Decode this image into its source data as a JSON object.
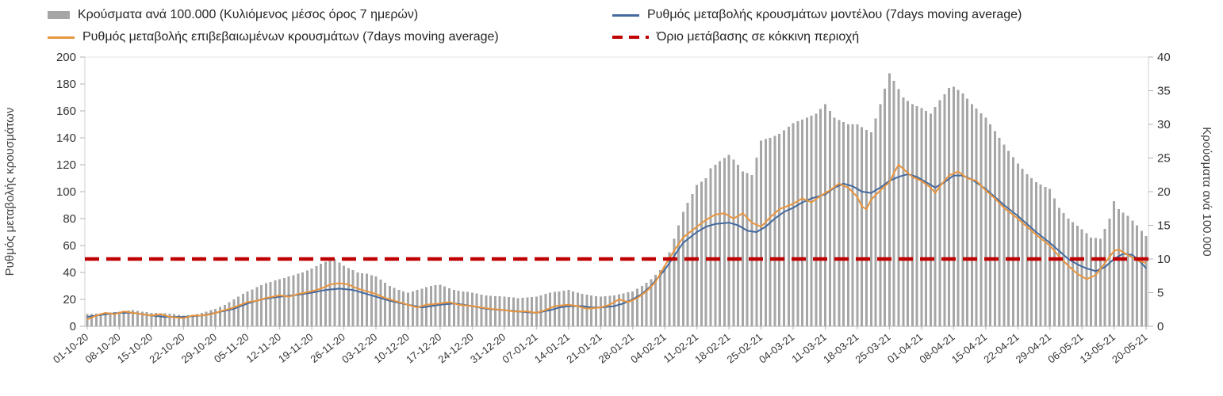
{
  "chart_data": {
    "type": "bar+line",
    "title": "",
    "days_total": 232,
    "x_tick_labels": [
      "01-10-20",
      "08-10-20",
      "15-10-20",
      "22-10-20",
      "29-10-20",
      "05-11-20",
      "12-11-20",
      "19-11-20",
      "26-11-20",
      "03-12-20",
      "10-12-20",
      "17-12-20",
      "24-12-20",
      "31-12-20",
      "07-01-21",
      "14-01-21",
      "21-01-21",
      "28-01-21",
      "04-02-21",
      "11-02-21",
      "18-02-21",
      "25-02-21",
      "04-03-21",
      "11-03-21",
      "18-03-21",
      "25-03-21",
      "01-04-21",
      "08-04-21",
      "15-04-21",
      "22-04-21",
      "29-04-21",
      "06-05-21",
      "13-05-21",
      "20-05-21"
    ],
    "left_axis": {
      "label": "Ρυθμός μεταβολής κρουσμάτων",
      "min": 0,
      "max": 200,
      "step": 20
    },
    "right_axis": {
      "label": "Κρούσματα ανά 100.000",
      "min": 0,
      "max": 40,
      "step": 5
    },
    "bars": {
      "name": "Κρούσματα ανά 100.000  (Κυλιόμενος μέσος όρος 7 ημερών)",
      "axis": "right",
      "color": "#a6a6a6",
      "points": [
        [
          0,
          1.8
        ],
        [
          2,
          1.9
        ],
        [
          4,
          2.0
        ],
        [
          7,
          2.2
        ],
        [
          10,
          2.4
        ],
        [
          12,
          2.2
        ],
        [
          14,
          2.0
        ],
        [
          18,
          1.9
        ],
        [
          21,
          1.6
        ],
        [
          23,
          1.7
        ],
        [
          25,
          2.0
        ],
        [
          28,
          2.6
        ],
        [
          30,
          3.2
        ],
        [
          32,
          4.0
        ],
        [
          35,
          5.2
        ],
        [
          37,
          5.8
        ],
        [
          39,
          6.4
        ],
        [
          42,
          7.0
        ],
        [
          45,
          7.6
        ],
        [
          47,
          8.0
        ],
        [
          49,
          8.6
        ],
        [
          52,
          9.6
        ],
        [
          54,
          10.0
        ],
        [
          56,
          9.0
        ],
        [
          59,
          8.0
        ],
        [
          61,
          7.8
        ],
        [
          63,
          7.4
        ],
        [
          66,
          6.0
        ],
        [
          68,
          5.4
        ],
        [
          70,
          5.0
        ],
        [
          73,
          5.6
        ],
        [
          75,
          6.0
        ],
        [
          77,
          6.2
        ],
        [
          80,
          5.4
        ],
        [
          82,
          5.2
        ],
        [
          84,
          5.0
        ],
        [
          87,
          4.6
        ],
        [
          89,
          4.5
        ],
        [
          91,
          4.4
        ],
        [
          94,
          4.2
        ],
        [
          96,
          4.3
        ],
        [
          98,
          4.4
        ],
        [
          101,
          5.0
        ],
        [
          103,
          5.2
        ],
        [
          105,
          5.4
        ],
        [
          108,
          4.8
        ],
        [
          110,
          4.6
        ],
        [
          112,
          4.4
        ],
        [
          115,
          4.6
        ],
        [
          117,
          4.9
        ],
        [
          119,
          5.2
        ],
        [
          121,
          6.0
        ],
        [
          123,
          7.0
        ],
        [
          126,
          9.0
        ],
        [
          128,
          13.0
        ],
        [
          130,
          17.0
        ],
        [
          133,
          21.0
        ],
        [
          135,
          22.0
        ],
        [
          136,
          23.5
        ],
        [
          138,
          24.5
        ],
        [
          140,
          25.5
        ],
        [
          142,
          24.0
        ],
        [
          143,
          23.0
        ],
        [
          145,
          22.5
        ],
        [
          147,
          27.6
        ],
        [
          149,
          28.0
        ],
        [
          151,
          28.6
        ],
        [
          154,
          30.2
        ],
        [
          157,
          31.0
        ],
        [
          159,
          31.6
        ],
        [
          161,
          33.0
        ],
        [
          163,
          31.0
        ],
        [
          166,
          30.0
        ],
        [
          168,
          30.0
        ],
        [
          171,
          28.8
        ],
        [
          173,
          33.0
        ],
        [
          175,
          37.6
        ],
        [
          176,
          36.5
        ],
        [
          178,
          34.0
        ],
        [
          180,
          33.0
        ],
        [
          182,
          32.4
        ],
        [
          184,
          31.6
        ],
        [
          186,
          33.6
        ],
        [
          188,
          35.4
        ],
        [
          189,
          35.6
        ],
        [
          191,
          34.6
        ],
        [
          193,
          33.0
        ],
        [
          196,
          31.0
        ],
        [
          198,
          29.0
        ],
        [
          200,
          27.0
        ],
        [
          203,
          24.2
        ],
        [
          205,
          22.6
        ],
        [
          207,
          21.4
        ],
        [
          210,
          20.4
        ],
        [
          212,
          17.6
        ],
        [
          214,
          16.0
        ],
        [
          217,
          14.4
        ],
        [
          219,
          13.2
        ],
        [
          221,
          13.0
        ],
        [
          223,
          16.0
        ],
        [
          224,
          18.6
        ],
        [
          225,
          17.4
        ],
        [
          227,
          16.4
        ],
        [
          229,
          15.0
        ],
        [
          231,
          13.4
        ]
      ]
    },
    "series": [
      {
        "name": "Ρυθμός μεταβολής κρουσμάτων μοντέλου (7days moving average)",
        "axis": "left",
        "color": "#44699e",
        "points": [
          [
            0,
            7
          ],
          [
            4,
            9
          ],
          [
            7,
            10
          ],
          [
            10,
            10
          ],
          [
            14,
            8
          ],
          [
            17,
            7
          ],
          [
            21,
            7
          ],
          [
            25,
            8
          ],
          [
            28,
            10
          ],
          [
            32,
            13
          ],
          [
            35,
            17
          ],
          [
            38,
            20
          ],
          [
            42,
            22
          ],
          [
            45,
            23
          ],
          [
            49,
            25
          ],
          [
            52,
            27
          ],
          [
            55,
            28
          ],
          [
            58,
            27
          ],
          [
            61,
            24
          ],
          [
            63,
            22
          ],
          [
            66,
            19
          ],
          [
            70,
            16
          ],
          [
            73,
            14
          ],
          [
            75,
            15
          ],
          [
            77,
            16
          ],
          [
            80,
            17
          ],
          [
            82,
            16
          ],
          [
            84,
            15
          ],
          [
            87,
            13
          ],
          [
            91,
            12
          ],
          [
            94,
            11
          ],
          [
            98,
            10
          ],
          [
            101,
            12
          ],
          [
            103,
            14
          ],
          [
            105,
            15
          ],
          [
            108,
            15
          ],
          [
            110,
            14
          ],
          [
            112,
            14
          ],
          [
            115,
            15
          ],
          [
            117,
            17
          ],
          [
            119,
            20
          ],
          [
            121,
            24
          ],
          [
            123,
            30
          ],
          [
            126,
            42
          ],
          [
            128,
            52
          ],
          [
            130,
            62
          ],
          [
            133,
            70
          ],
          [
            135,
            74
          ],
          [
            137,
            76
          ],
          [
            140,
            77
          ],
          [
            142,
            75
          ],
          [
            144,
            71
          ],
          [
            146,
            70
          ],
          [
            148,
            74
          ],
          [
            150,
            80
          ],
          [
            152,
            85
          ],
          [
            154,
            88
          ],
          [
            156,
            92
          ],
          [
            158,
            95
          ],
          [
            161,
            98
          ],
          [
            163,
            103
          ],
          [
            165,
            106
          ],
          [
            167,
            104
          ],
          [
            169,
            100
          ],
          [
            171,
            99
          ],
          [
            173,
            103
          ],
          [
            175,
            108
          ],
          [
            177,
            111
          ],
          [
            179,
            113
          ],
          [
            181,
            111
          ],
          [
            183,
            107
          ],
          [
            185,
            103
          ],
          [
            187,
            107
          ],
          [
            189,
            112
          ],
          [
            191,
            112
          ],
          [
            193,
            109
          ],
          [
            196,
            102
          ],
          [
            198,
            96
          ],
          [
            200,
            90
          ],
          [
            203,
            82
          ],
          [
            205,
            76
          ],
          [
            207,
            70
          ],
          [
            210,
            62
          ],
          [
            212,
            56
          ],
          [
            214,
            50
          ],
          [
            216,
            46
          ],
          [
            218,
            43
          ],
          [
            220,
            41
          ],
          [
            222,
            44
          ],
          [
            224,
            50
          ],
          [
            226,
            54
          ],
          [
            228,
            53
          ],
          [
            230,
            47
          ],
          [
            231,
            43
          ]
        ]
      },
      {
        "name": "Ρυθμός μεταβολής επιβεβαιωμένων κρουσμάτων (7days moving average)",
        "axis": "left",
        "color": "#e8953e",
        "points": [
          [
            0,
            5
          ],
          [
            2,
            8
          ],
          [
            4,
            10
          ],
          [
            6,
            9
          ],
          [
            8,
            11
          ],
          [
            10,
            10
          ],
          [
            12,
            9
          ],
          [
            14,
            8
          ],
          [
            16,
            9
          ],
          [
            18,
            7
          ],
          [
            21,
            6
          ],
          [
            23,
            8
          ],
          [
            25,
            8
          ],
          [
            27,
            9
          ],
          [
            28,
            10
          ],
          [
            30,
            12
          ],
          [
            32,
            14
          ],
          [
            35,
            18
          ],
          [
            37,
            19
          ],
          [
            39,
            21
          ],
          [
            42,
            23
          ],
          [
            44,
            22
          ],
          [
            46,
            24
          ],
          [
            49,
            26
          ],
          [
            51,
            28
          ],
          [
            53,
            31
          ],
          [
            55,
            32
          ],
          [
            57,
            31
          ],
          [
            59,
            28
          ],
          [
            61,
            26
          ],
          [
            63,
            24
          ],
          [
            65,
            21
          ],
          [
            68,
            18
          ],
          [
            70,
            16
          ],
          [
            72,
            14
          ],
          [
            74,
            16
          ],
          [
            77,
            17
          ],
          [
            79,
            18
          ],
          [
            81,
            16
          ],
          [
            84,
            15
          ],
          [
            86,
            14
          ],
          [
            88,
            13
          ],
          [
            91,
            12
          ],
          [
            93,
            11
          ],
          [
            96,
            11
          ],
          [
            98,
            10
          ],
          [
            100,
            12
          ],
          [
            102,
            15
          ],
          [
            105,
            16
          ],
          [
            107,
            15
          ],
          [
            109,
            13
          ],
          [
            112,
            14
          ],
          [
            114,
            16
          ],
          [
            116,
            20
          ],
          [
            118,
            18
          ],
          [
            120,
            21
          ],
          [
            122,
            26
          ],
          [
            124,
            33
          ],
          [
            126,
            45
          ],
          [
            128,
            56
          ],
          [
            130,
            66
          ],
          [
            133,
            74
          ],
          [
            135,
            79
          ],
          [
            137,
            83
          ],
          [
            139,
            84
          ],
          [
            141,
            80
          ],
          [
            143,
            84
          ],
          [
            145,
            77
          ],
          [
            147,
            74
          ],
          [
            149,
            81
          ],
          [
            151,
            87
          ],
          [
            154,
            91
          ],
          [
            156,
            95
          ],
          [
            158,
            92
          ],
          [
            160,
            97
          ],
          [
            162,
            101
          ],
          [
            164,
            106
          ],
          [
            166,
            103
          ],
          [
            168,
            96
          ],
          [
            169,
            89
          ],
          [
            170,
            87
          ],
          [
            171,
            94
          ],
          [
            173,
            101
          ],
          [
            175,
            107
          ],
          [
            176,
            114
          ],
          [
            177,
            120
          ],
          [
            178,
            117
          ],
          [
            180,
            111
          ],
          [
            182,
            108
          ],
          [
            184,
            103
          ],
          [
            185,
            99
          ],
          [
            186,
            104
          ],
          [
            188,
            112
          ],
          [
            190,
            115
          ],
          [
            192,
            110
          ],
          [
            194,
            108
          ],
          [
            196,
            101
          ],
          [
            198,
            95
          ],
          [
            200,
            88
          ],
          [
            203,
            80
          ],
          [
            205,
            74
          ],
          [
            207,
            68
          ],
          [
            210,
            60
          ],
          [
            212,
            52
          ],
          [
            214,
            45
          ],
          [
            216,
            39
          ],
          [
            218,
            35
          ],
          [
            220,
            38
          ],
          [
            222,
            47
          ],
          [
            224,
            56
          ],
          [
            225,
            57
          ],
          [
            227,
            53
          ],
          [
            229,
            49
          ],
          [
            231,
            47
          ]
        ]
      }
    ],
    "threshold": {
      "name": "Όριο μετάβασης σε κόκκινη περιοχή",
      "axis": "left",
      "value": 50,
      "color": "#c00000",
      "style": "dashed"
    }
  }
}
